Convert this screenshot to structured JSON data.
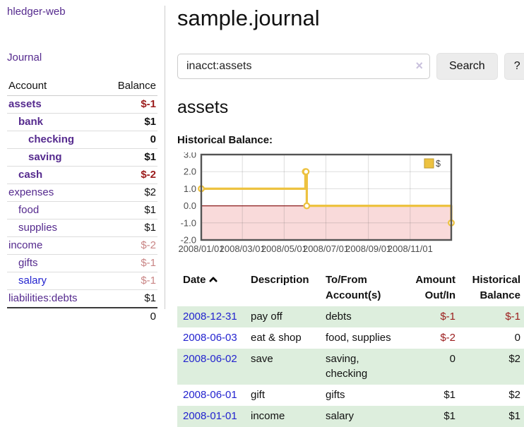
{
  "colors": {
    "brand_purple": "#552a8e",
    "link_blue": "#2323cf",
    "negative_red": "#9b1c1c",
    "muted_red": "#c98585",
    "row_green": "#ddeedd",
    "chart_gold": "#edc240",
    "chart_negative_region": "#f9dada",
    "chart_zero_line": "#8b1c1c"
  },
  "sidebar": {
    "brand": "hledger-web",
    "nav": {
      "journal": "Journal"
    },
    "accounts": {
      "col_account": "Account",
      "col_balance": "Balance",
      "rows": [
        {
          "name": "assets",
          "balance": "$-1"
        },
        {
          "name": "bank",
          "balance": "$1"
        },
        {
          "name": "checking",
          "balance": "0"
        },
        {
          "name": "saving",
          "balance": "$1"
        },
        {
          "name": "cash",
          "balance": "$-2"
        },
        {
          "name": "expenses",
          "balance": "$2"
        },
        {
          "name": "food",
          "balance": "$1"
        },
        {
          "name": "supplies",
          "balance": "$1"
        },
        {
          "name": "income",
          "balance": "$-2"
        },
        {
          "name": "gifts",
          "balance": "$-1"
        },
        {
          "name": "salary",
          "balance": "$-1"
        },
        {
          "name": "liabilities:debts",
          "balance": "$1"
        }
      ],
      "total": "0"
    }
  },
  "main": {
    "title": "sample.journal",
    "search": {
      "value": "inacct:assets",
      "clear_icon": "×",
      "search_button": "Search",
      "help_button": "?"
    },
    "account_heading": "assets",
    "section_label": "Historical Balance:"
  },
  "chart_data": {
    "type": "line",
    "step": true,
    "title": "Historical Balance",
    "legend": "$",
    "legend_position": "top-right",
    "grid": true,
    "ylim": [
      -2,
      3
    ],
    "x_start": "2008-01-01",
    "x_end": "2008-12-31",
    "yticks": [
      {
        "label": "3.0",
        "value": 3
      },
      {
        "label": "2.0",
        "value": 2
      },
      {
        "label": "1.0",
        "value": 1
      },
      {
        "label": "0.0",
        "value": 0
      },
      {
        "label": "-1.0",
        "value": -1
      },
      {
        "label": "-2.0",
        "value": -2
      }
    ],
    "xticks": [
      {
        "label": "2008/01/01",
        "date": "2008-01-01"
      },
      {
        "label": "2008/03/01",
        "date": "2008-03-01"
      },
      {
        "label": "2008/05/01",
        "date": "2008-05-01"
      },
      {
        "label": "2008/07/01",
        "date": "2008-07-01"
      },
      {
        "label": "2008/09/01",
        "date": "2008-09-01"
      },
      {
        "label": "2008/11/01",
        "date": "2008-11-01"
      }
    ],
    "series": [
      {
        "name": "$",
        "color": "#edc240",
        "points": [
          [
            "2008-01-01",
            1
          ],
          [
            "2008-06-01",
            2
          ],
          [
            "2008-06-02",
            2
          ],
          [
            "2008-06-03",
            0
          ],
          [
            "2008-12-31",
            -1
          ]
        ]
      }
    ],
    "negative_region_color": "#f9dada",
    "zero_line_color": "#8b1c1c"
  },
  "register": {
    "headers": {
      "date": "Date",
      "description": "Description",
      "accounts": "To/From Account(s)",
      "amount": "Amount Out/In",
      "balance": "Historical Balance"
    },
    "rows": [
      {
        "date": "2008-12-31",
        "description": "pay off",
        "accounts": "debts",
        "amount": "$-1",
        "balance": "$-1"
      },
      {
        "date": "2008-06-03",
        "description": "eat & shop",
        "accounts": "food, supplies",
        "amount": "$-2",
        "balance": "0"
      },
      {
        "date": "2008-06-02",
        "description": "save",
        "accounts": "saving, checking",
        "amount": "0",
        "balance": "$2"
      },
      {
        "date": "2008-06-01",
        "description": "gift",
        "accounts": "gifts",
        "amount": "$1",
        "balance": "$2"
      },
      {
        "date": "2008-01-01",
        "description": "income",
        "accounts": "salary",
        "amount": "$1",
        "balance": "$1"
      }
    ]
  }
}
